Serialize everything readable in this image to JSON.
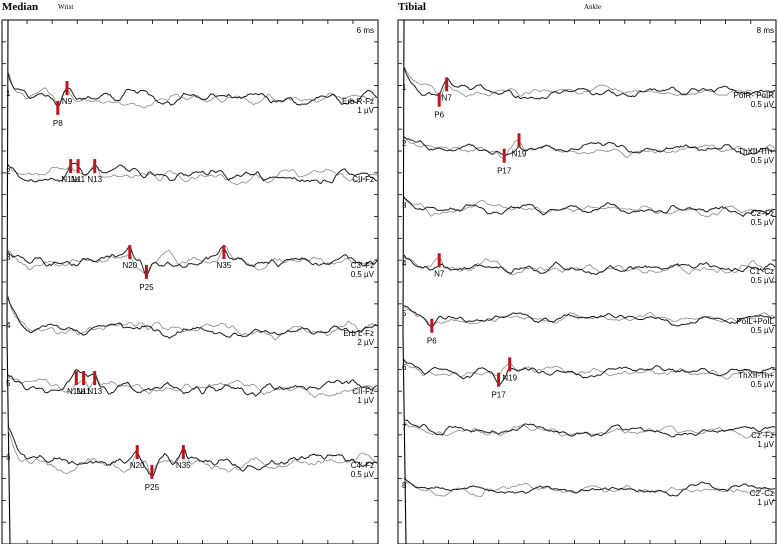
{
  "chart_data": [
    {
      "type": "line",
      "title": "Median",
      "subtitle": "Wrist",
      "time_scale_label": "6 ms",
      "colors": {
        "marker": "#c0141c",
        "trace_primary": "#1a1a1a",
        "trace_secondary": "#8a8a8a"
      },
      "channels": [
        {
          "num": "1",
          "label": "Erb R-Fz",
          "scale": "1 µV",
          "peaks": [
            {
              "name": "P8",
              "pos": 0.135,
              "dir": "down"
            },
            {
              "name": "N9",
              "pos": 0.16,
              "dir": "up"
            }
          ]
        },
        {
          "num": "2",
          "label": "CII-Fz",
          "scale": "",
          "peaks": [
            {
              "name": "N11a",
              "pos": 0.17,
              "dir": "up"
            },
            {
              "name": "N11",
              "pos": 0.19,
              "dir": "up"
            },
            {
              "name": "N13",
              "pos": 0.235,
              "dir": "up"
            }
          ]
        },
        {
          "num": "3",
          "label": "C3'-Fz",
          "scale": "0.5 µV",
          "peaks": [
            {
              "name": "N20",
              "pos": 0.33,
              "dir": "up"
            },
            {
              "name": "P25",
              "pos": 0.375,
              "dir": "down"
            },
            {
              "name": "N35",
              "pos": 0.585,
              "dir": "up"
            }
          ]
        },
        {
          "num": "4",
          "label": "Erb L-Fz",
          "scale": "2 µV",
          "peaks": []
        },
        {
          "num": "5",
          "label": "CII-Fz",
          "scale": "1 µV",
          "peaks": [
            {
              "name": "N11a",
              "pos": 0.185,
              "dir": "up"
            },
            {
              "name": "N11",
              "pos": 0.205,
              "dir": "up"
            },
            {
              "name": "N13",
              "pos": 0.235,
              "dir": "up"
            }
          ]
        },
        {
          "num": "6",
          "label": "C4'-Fz",
          "scale": "0.5 µV",
          "peaks": [
            {
              "name": "N20",
              "pos": 0.35,
              "dir": "up"
            },
            {
              "name": "P25",
              "pos": 0.39,
              "dir": "down"
            },
            {
              "name": "N35",
              "pos": 0.475,
              "dir": "up"
            }
          ]
        }
      ]
    },
    {
      "type": "line",
      "title": "Tibial",
      "subtitle": "Ankle",
      "time_scale_label": "8 ms",
      "colors": {
        "marker": "#c0141c",
        "trace_primary": "#1a1a1a",
        "trace_secondary": "#8a8a8a"
      },
      "channels": [
        {
          "num": "1",
          "label": "PoIR- PoIR",
          "scale": "0.5 µV",
          "peaks": [
            {
              "name": "P6",
              "pos": 0.095,
              "dir": "down"
            },
            {
              "name": "N7",
              "pos": 0.115,
              "dir": "up"
            }
          ]
        },
        {
          "num": "2",
          "label": "ThXII-Th+",
          "scale": "0.5 µV",
          "peaks": [
            {
              "name": "P17",
              "pos": 0.27,
              "dir": "down"
            },
            {
              "name": "N19",
              "pos": 0.31,
              "dir": "up"
            }
          ]
        },
        {
          "num": "3",
          "label": "C2'-Fz",
          "scale": "0.5 µV",
          "peaks": []
        },
        {
          "num": "4",
          "label": "C1'-Cz",
          "scale": "0.5 µV",
          "peaks": [
            {
              "name": "N7",
              "pos": 0.095,
              "dir": "up"
            }
          ]
        },
        {
          "num": "5",
          "label": "PoIL+PoIL",
          "scale": "0.5 µV",
          "peaks": [
            {
              "name": "P6",
              "pos": 0.075,
              "dir": "down"
            }
          ]
        },
        {
          "num": "6",
          "label": "ThXII-Th+",
          "scale": "0.5 µV",
          "peaks": [
            {
              "name": "P17",
              "pos": 0.255,
              "dir": "down"
            },
            {
              "name": "N19",
              "pos": 0.285,
              "dir": "up"
            }
          ]
        },
        {
          "num": "7",
          "label": "Cz'-Fz",
          "scale": "1 µV",
          "peaks": []
        },
        {
          "num": "8",
          "label": "C2'-Cz",
          "scale": "1 µV",
          "peaks": []
        }
      ]
    }
  ]
}
